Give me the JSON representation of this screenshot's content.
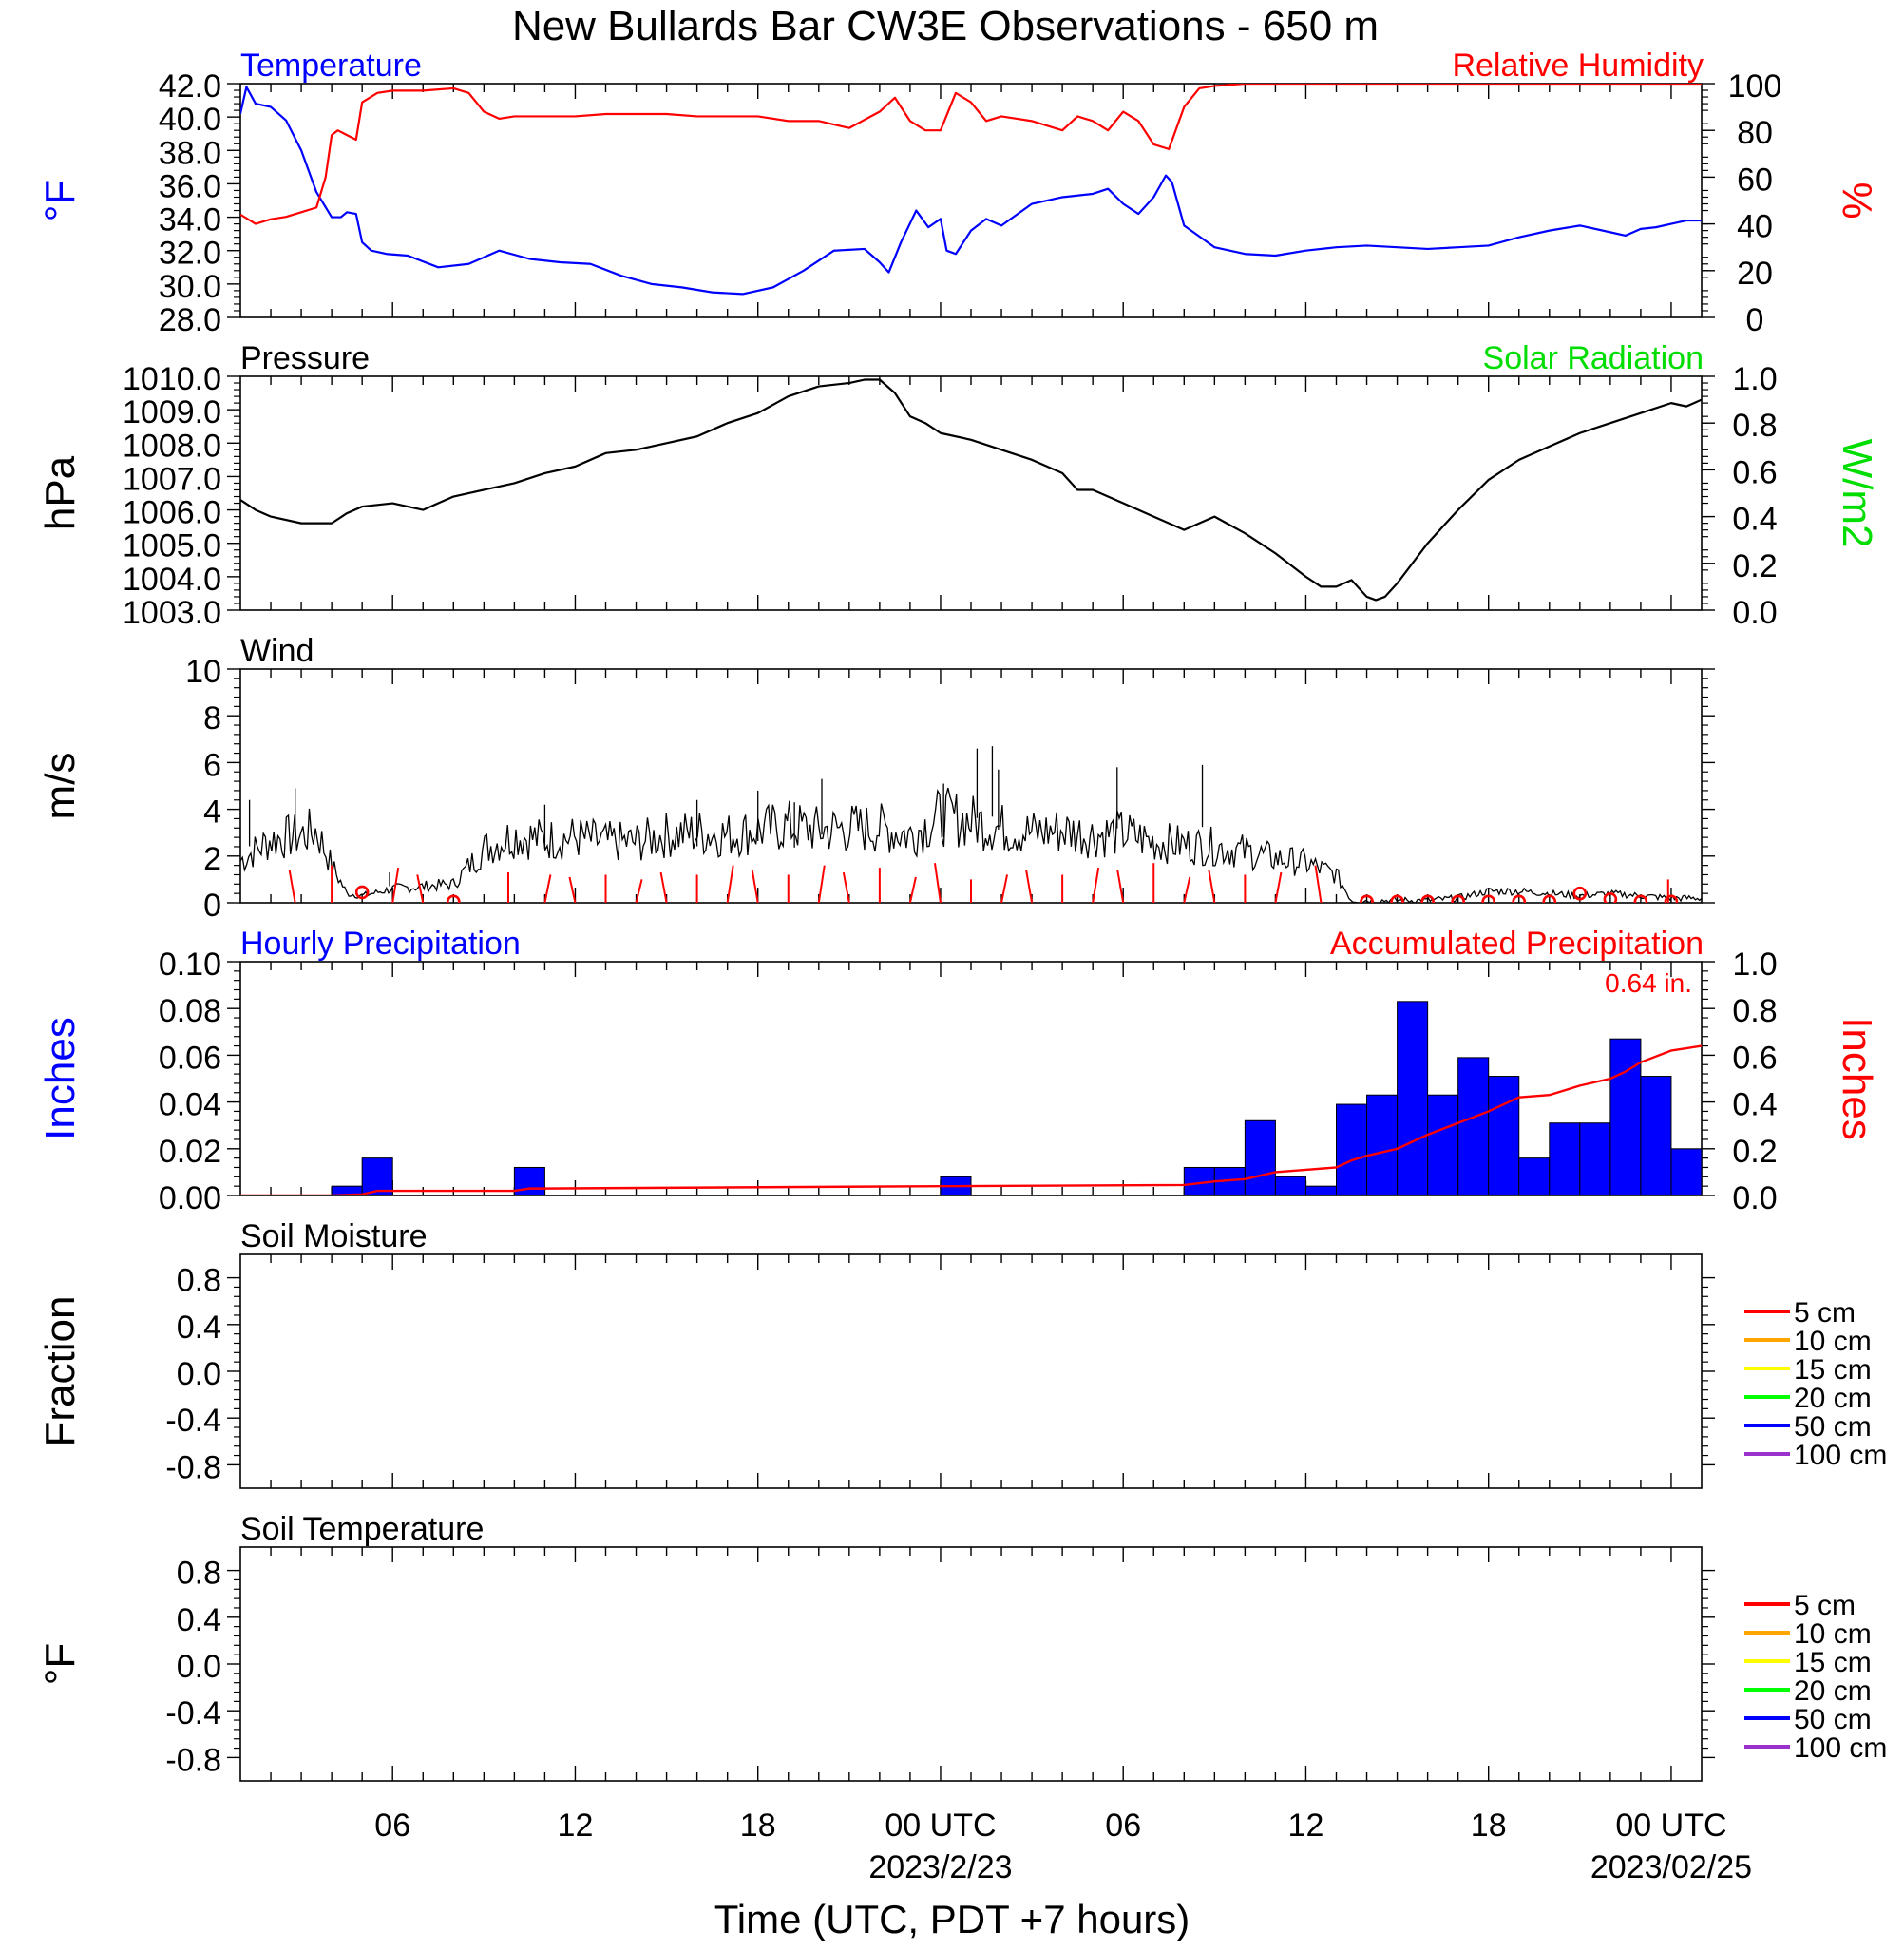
{
  "title": "New Bullards Bar CW3E Observations - 650 m",
  "x_axis": {
    "label": "Time (UTC, PDT +7 hours)",
    "ticks": [
      {
        "hours": 6,
        "label": "06",
        "sub": ""
      },
      {
        "hours": 12,
        "label": "12",
        "sub": ""
      },
      {
        "hours": 18,
        "label": "18",
        "sub": ""
      },
      {
        "hours": 24,
        "label": "00 UTC",
        "sub": "2023/2/23"
      },
      {
        "hours": 30,
        "label": "06",
        "sub": ""
      },
      {
        "hours": 36,
        "label": "12",
        "sub": ""
      },
      {
        "hours": 42,
        "label": "18",
        "sub": ""
      },
      {
        "hours": 48,
        "label": "00 UTC",
        "sub": "2023/02/25"
      }
    ],
    "range_hours": [
      1,
      49
    ]
  },
  "colors": {
    "temperature": "#0000ff",
    "humidity": "#ff0000",
    "pressure": "#000000",
    "solar": "#00dd00",
    "wind": "#000000",
    "barb": "#ff0000",
    "hourly_bar": "#0000ff",
    "accum": "#ff0000"
  },
  "chart_data": [
    {
      "type": "line",
      "title": "Temperature",
      "right_title": "Relative Humidity",
      "left_unit": "°F",
      "right_unit": "%",
      "ylim_left": [
        28,
        42
      ],
      "ylim_right": [
        0,
        100
      ],
      "left_ticks": [
        "28.0",
        "30.0",
        "32.0",
        "34.0",
        "36.0",
        "38.0",
        "40.0",
        "42.0"
      ],
      "right_ticks": [
        "0",
        "20",
        "40",
        "60",
        "80",
        "100"
      ],
      "series": [
        {
          "name": "Temperature",
          "axis": "left",
          "x": [
            1,
            1.2,
            1.5,
            2,
            2.5,
            3,
            3.5,
            4,
            4.3,
            4.5,
            4.8,
            5,
            5.3,
            5.8,
            6.5,
            7.5,
            8.5,
            9.5,
            10.5,
            11.5,
            12.5,
            13.5,
            14.5,
            15.5,
            16.5,
            17.5,
            18.5,
            19.5,
            20.5,
            21.5,
            22,
            22.3,
            22.7,
            23.2,
            23.6,
            24,
            24.2,
            24.5,
            25,
            25.5,
            26,
            27,
            28,
            29,
            29.5,
            30,
            30.5,
            31,
            31.4,
            31.6,
            32,
            33,
            34,
            35,
            36,
            37,
            38,
            39,
            40,
            41,
            42,
            43,
            44,
            45,
            46,
            46.5,
            47,
            47.5,
            48,
            48.5,
            49
          ],
          "y": [
            40.2,
            41.8,
            40.8,
            40.6,
            39.8,
            38,
            35.5,
            34,
            34,
            34.3,
            34.2,
            32.5,
            32,
            31.8,
            31.7,
            31,
            31.2,
            32,
            31.5,
            31.3,
            31.2,
            30.5,
            30,
            29.8,
            29.5,
            29.4,
            29.8,
            30.8,
            32,
            32.1,
            31.3,
            30.7,
            32.5,
            34.4,
            33.4,
            33.9,
            32,
            31.8,
            33.2,
            33.9,
            33.5,
            34.8,
            35.2,
            35.4,
            35.7,
            34.8,
            34.2,
            35.2,
            36.5,
            36.1,
            33.5,
            32.2,
            31.8,
            31.7,
            32,
            32.2,
            32.3,
            32.2,
            32.1,
            32.2,
            32.3,
            32.8,
            33.2,
            33.5,
            33.1,
            32.9,
            33.3,
            33.4,
            33.6,
            33.8,
            33.8
          ]
        },
        {
          "name": "Relative Humidity",
          "axis": "right",
          "x": [
            1,
            1.5,
            2,
            2.5,
            3,
            3.5,
            3.8,
            4,
            4.2,
            4.5,
            4.8,
            5,
            5.5,
            6,
            7,
            8,
            8.5,
            9,
            9.5,
            10,
            11,
            12,
            13,
            14,
            15,
            16,
            17,
            18,
            19,
            20,
            21,
            22,
            22.5,
            23,
            23.5,
            24,
            24.5,
            25,
            25.5,
            26,
            27,
            28,
            28.5,
            29,
            29.5,
            30,
            30.5,
            31,
            31.5,
            32,
            32.5,
            33,
            34,
            35,
            36,
            37,
            38,
            39,
            40,
            41,
            42,
            43,
            44,
            45,
            46,
            47,
            48,
            49
          ],
          "y": [
            44,
            40,
            42,
            43,
            45,
            47,
            60,
            78,
            80,
            78,
            76,
            92,
            96,
            97,
            97,
            98,
            96,
            88,
            85,
            86,
            86,
            86,
            87,
            87,
            87,
            86,
            86,
            86,
            84,
            84,
            81,
            88,
            94,
            84,
            80,
            80,
            96,
            92,
            84,
            86,
            84,
            80,
            86,
            84,
            80,
            88,
            84,
            74,
            72,
            90,
            98,
            99,
            100,
            100,
            100,
            100,
            100,
            100,
            100,
            100,
            100,
            100,
            100,
            100,
            100,
            100,
            100,
            100
          ]
        }
      ]
    },
    {
      "type": "line",
      "title": "Pressure",
      "right_title": "Solar Radiation",
      "left_unit": "hPa",
      "right_unit": "W/m2",
      "ylim_left": [
        1003,
        1010
      ],
      "ylim_right": [
        0,
        1
      ],
      "left_ticks": [
        "1003.0",
        "1004.0",
        "1005.0",
        "1006.0",
        "1007.0",
        "1008.0",
        "1009.0",
        "1010.0"
      ],
      "right_ticks": [
        "0.0",
        "0.2",
        "0.4",
        "0.6",
        "0.8",
        "1.0"
      ],
      "series": [
        {
          "name": "Pressure",
          "axis": "left",
          "x": [
            1,
            1.5,
            2,
            3,
            4,
            4.5,
            5,
            6,
            7,
            7.5,
            8,
            9,
            10,
            11,
            12,
            13,
            14,
            15,
            16,
            17,
            18,
            19,
            20,
            21,
            21.5,
            22,
            22.5,
            23,
            23.5,
            24,
            25,
            26,
            27,
            28,
            28.5,
            29,
            30,
            31,
            32,
            33,
            34,
            35,
            36,
            36.5,
            37,
            37.5,
            38,
            38.3,
            38.6,
            39,
            40,
            41,
            42,
            43,
            44,
            45,
            46,
            47,
            48,
            48.5,
            49
          ],
          "y": [
            1006.3,
            1006.0,
            1005.8,
            1005.6,
            1005.6,
            1005.9,
            1006.1,
            1006.2,
            1006.0,
            1006.2,
            1006.4,
            1006.6,
            1006.8,
            1007.1,
            1007.3,
            1007.7,
            1007.8,
            1008.0,
            1008.2,
            1008.6,
            1008.9,
            1009.4,
            1009.7,
            1009.8,
            1009.9,
            1009.9,
            1009.5,
            1008.8,
            1008.6,
            1008.3,
            1008.1,
            1007.8,
            1007.5,
            1007.1,
            1006.6,
            1006.6,
            1006.2,
            1005.8,
            1005.4,
            1005.8,
            1005.3,
            1004.7,
            1004.0,
            1003.7,
            1003.7,
            1003.9,
            1003.4,
            1003.3,
            1003.4,
            1003.8,
            1005.0,
            1006.0,
            1006.9,
            1007.5,
            1007.9,
            1008.3,
            1008.6,
            1008.9,
            1009.2,
            1009.1,
            1009.3
          ]
        }
      ]
    },
    {
      "type": "line",
      "title": "Wind",
      "left_unit": "m/s",
      "ylim_left": [
        0,
        10
      ],
      "left_ticks": [
        "0",
        "2",
        "4",
        "6",
        "8",
        "10"
      ],
      "series": [
        {
          "name": "Wind",
          "axis": "left",
          "x": [
            1,
            2,
            3,
            3.5,
            4,
            4.5,
            5,
            6,
            7,
            8,
            9,
            10,
            11,
            12,
            13,
            14,
            15,
            16,
            17,
            18,
            19,
            20,
            21,
            22,
            23,
            24,
            25,
            26,
            27,
            28,
            29,
            30,
            31,
            32,
            33,
            34,
            35,
            36,
            37,
            37.5,
            38,
            39,
            40,
            41,
            42,
            43,
            44,
            45,
            46,
            47,
            48,
            49
          ],
          "y": [
            1.8,
            2.7,
            2.9,
            3.1,
            1.6,
            0.4,
            0.3,
            0.6,
            0.7,
            0.8,
            2.3,
            2.9,
            2.7,
            2.8,
            2.6,
            2.6,
            2.9,
            3.0,
            2.9,
            3.1,
            3.3,
            3.1,
            3.2,
            3.2,
            2.9,
            3.7,
            3.5,
            3.2,
            3.0,
            3.1,
            2.9,
            3.0,
            2.6,
            2.5,
            2.4,
            2.2,
            1.9,
            1.7,
            1.2,
            0.1,
            0.1,
            0.1,
            0.1,
            0.2,
            0.5,
            0.5,
            0.4,
            0.3,
            0.4,
            0.3,
            0.2,
            0.2
          ],
          "spikes_x": [
            1.3,
            2.8,
            5.9,
            11,
            16,
            18,
            19.2,
            20.1,
            24.1,
            25.2,
            25.7,
            25.9,
            29.8,
            32.6
          ],
          "spikes_y": [
            4.4,
            4.9,
            1.3,
            4.2,
            4.4,
            4.8,
            4.3,
            5.3,
            5.1,
            6.6,
            6.7,
            5.7,
            5.8,
            5.9
          ]
        }
      ],
      "barbs_x": [
        2.8,
        4.0,
        6.0,
        7.0,
        9.8,
        11,
        12,
        13,
        14,
        15,
        16,
        17,
        18,
        19,
        20,
        21,
        22,
        23,
        24,
        25,
        26,
        27,
        28,
        29,
        30,
        31,
        32,
        33,
        34,
        35,
        36.5,
        47.9
      ],
      "barbs_len": [
        1.4,
        1.6,
        1.5,
        1.2,
        1.3,
        1.2,
        1.1,
        1.2,
        1.0,
        1.3,
        1.2,
        1.6,
        1.4,
        1.2,
        1.6,
        1.3,
        1.5,
        1.1,
        1.7,
        1.0,
        1.2,
        1.4,
        1.2,
        1.5,
        1.4,
        1.7,
        1.1,
        1.4,
        1.2,
        1.3,
        1.6,
        1.0
      ],
      "calm_x": [
        5.0,
        8.0,
        38,
        39,
        40,
        41,
        42,
        43,
        44,
        45,
        46,
        47,
        48
      ],
      "calm_y": [
        0.45,
        0.05,
        0.05,
        0.05,
        0.05,
        0.05,
        0.05,
        0.05,
        0.05,
        0.4,
        0.15,
        0.05,
        0.05
      ]
    },
    {
      "type": "bar",
      "title": "Hourly Precipitation",
      "right_title": "Accumulated Precipitation",
      "annotation": "0.64 in.",
      "left_unit": "Inches",
      "right_unit": "Inches",
      "ylim_left": [
        0,
        0.1
      ],
      "ylim_right": [
        0,
        1
      ],
      "left_ticks": [
        "0.00",
        "0.02",
        "0.04",
        "0.06",
        "0.08",
        "0.10"
      ],
      "right_ticks": [
        "0.0",
        "0.2",
        "0.4",
        "0.6",
        "0.8",
        "1.0"
      ],
      "bars": [
        {
          "start": 4,
          "value": 0.004
        },
        {
          "start": 5,
          "value": 0.016
        },
        {
          "start": 10,
          "value": 0.012
        },
        {
          "start": 24,
          "value": 0.008
        },
        {
          "start": 32,
          "value": 0.012
        },
        {
          "start": 33,
          "value": 0.012
        },
        {
          "start": 34,
          "value": 0.032
        },
        {
          "start": 35,
          "value": 0.008
        },
        {
          "start": 36,
          "value": 0.004
        },
        {
          "start": 37,
          "value": 0.039
        },
        {
          "start": 38,
          "value": 0.043
        },
        {
          "start": 39,
          "value": 0.083
        },
        {
          "start": 40,
          "value": 0.043
        },
        {
          "start": 41,
          "value": 0.059
        },
        {
          "start": 42,
          "value": 0.051
        },
        {
          "start": 43,
          "value": 0.016
        },
        {
          "start": 44,
          "value": 0.031
        },
        {
          "start": 45,
          "value": 0.031
        },
        {
          "start": 46,
          "value": 0.067
        },
        {
          "start": 47,
          "value": 0.051
        },
        {
          "start": 48,
          "value": 0.02
        }
      ],
      "accum": {
        "x": [
          1,
          4,
          5,
          5.5,
          6,
          10,
          10.5,
          11,
          24,
          24.5,
          32,
          33,
          34,
          35,
          36,
          37,
          37.5,
          38,
          39,
          40,
          41,
          42,
          43,
          44,
          45,
          46,
          46.5,
          47,
          48,
          48.5,
          49
        ],
        "y": [
          0,
          0,
          0.005,
          0.02,
          0.02,
          0.02,
          0.03,
          0.03,
          0.04,
          0.04,
          0.045,
          0.06,
          0.07,
          0.1,
          0.11,
          0.12,
          0.15,
          0.17,
          0.2,
          0.26,
          0.31,
          0.36,
          0.42,
          0.43,
          0.47,
          0.5,
          0.53,
          0.57,
          0.62,
          0.63,
          0.64
        ]
      }
    },
    {
      "type": "line",
      "title": "Soil Moisture",
      "left_unit": "Fraction",
      "ylim_left": [
        -1,
        1
      ],
      "left_ticks": [
        "-0.8",
        "-0.4",
        "0.0",
        "0.4",
        "0.8"
      ],
      "legend": [
        "5 cm",
        "10 cm",
        "15 cm",
        "20 cm",
        "50 cm",
        "100 cm"
      ],
      "series": []
    },
    {
      "type": "line",
      "title": "Soil Temperature",
      "left_unit": "°F",
      "ylim_left": [
        -1,
        1
      ],
      "left_ticks": [
        "-0.8",
        "-0.4",
        "0.0",
        "0.4",
        "0.8"
      ],
      "legend": [
        "5 cm",
        "10 cm",
        "15 cm",
        "20 cm",
        "50 cm",
        "100 cm"
      ],
      "series": []
    }
  ],
  "legend_colors": [
    "#ff0000",
    "#ffa500",
    "#ffff00",
    "#00ff00",
    "#0000ff",
    "#9932cc"
  ]
}
